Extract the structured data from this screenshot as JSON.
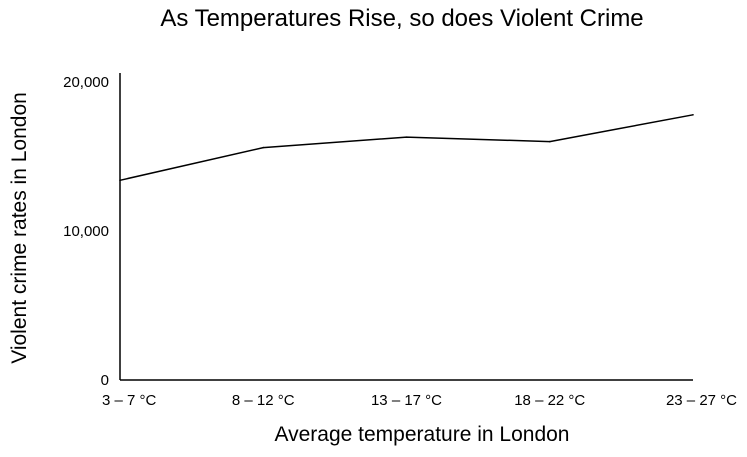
{
  "chart_data": {
    "type": "line",
    "title": "As Temperatures Rise, so does Violent Crime",
    "xlabel": "Average temperature in London",
    "ylabel": "Violent crime rates in London",
    "categories": [
      "3 – 7 °C",
      "8 – 12 °C",
      "13 – 17 °C",
      "18 – 22 °C",
      "23 – 27 °C"
    ],
    "series": [
      {
        "values": [
          13400,
          15600,
          16300,
          16000,
          17800
        ]
      }
    ],
    "ylim": [
      0,
      20000
    ],
    "yticks": [
      0,
      10000,
      20000
    ],
    "ytick_labels": [
      "0",
      "10,000",
      "20,000"
    ],
    "grid": false,
    "legend": "none",
    "line_color": "#000000"
  }
}
